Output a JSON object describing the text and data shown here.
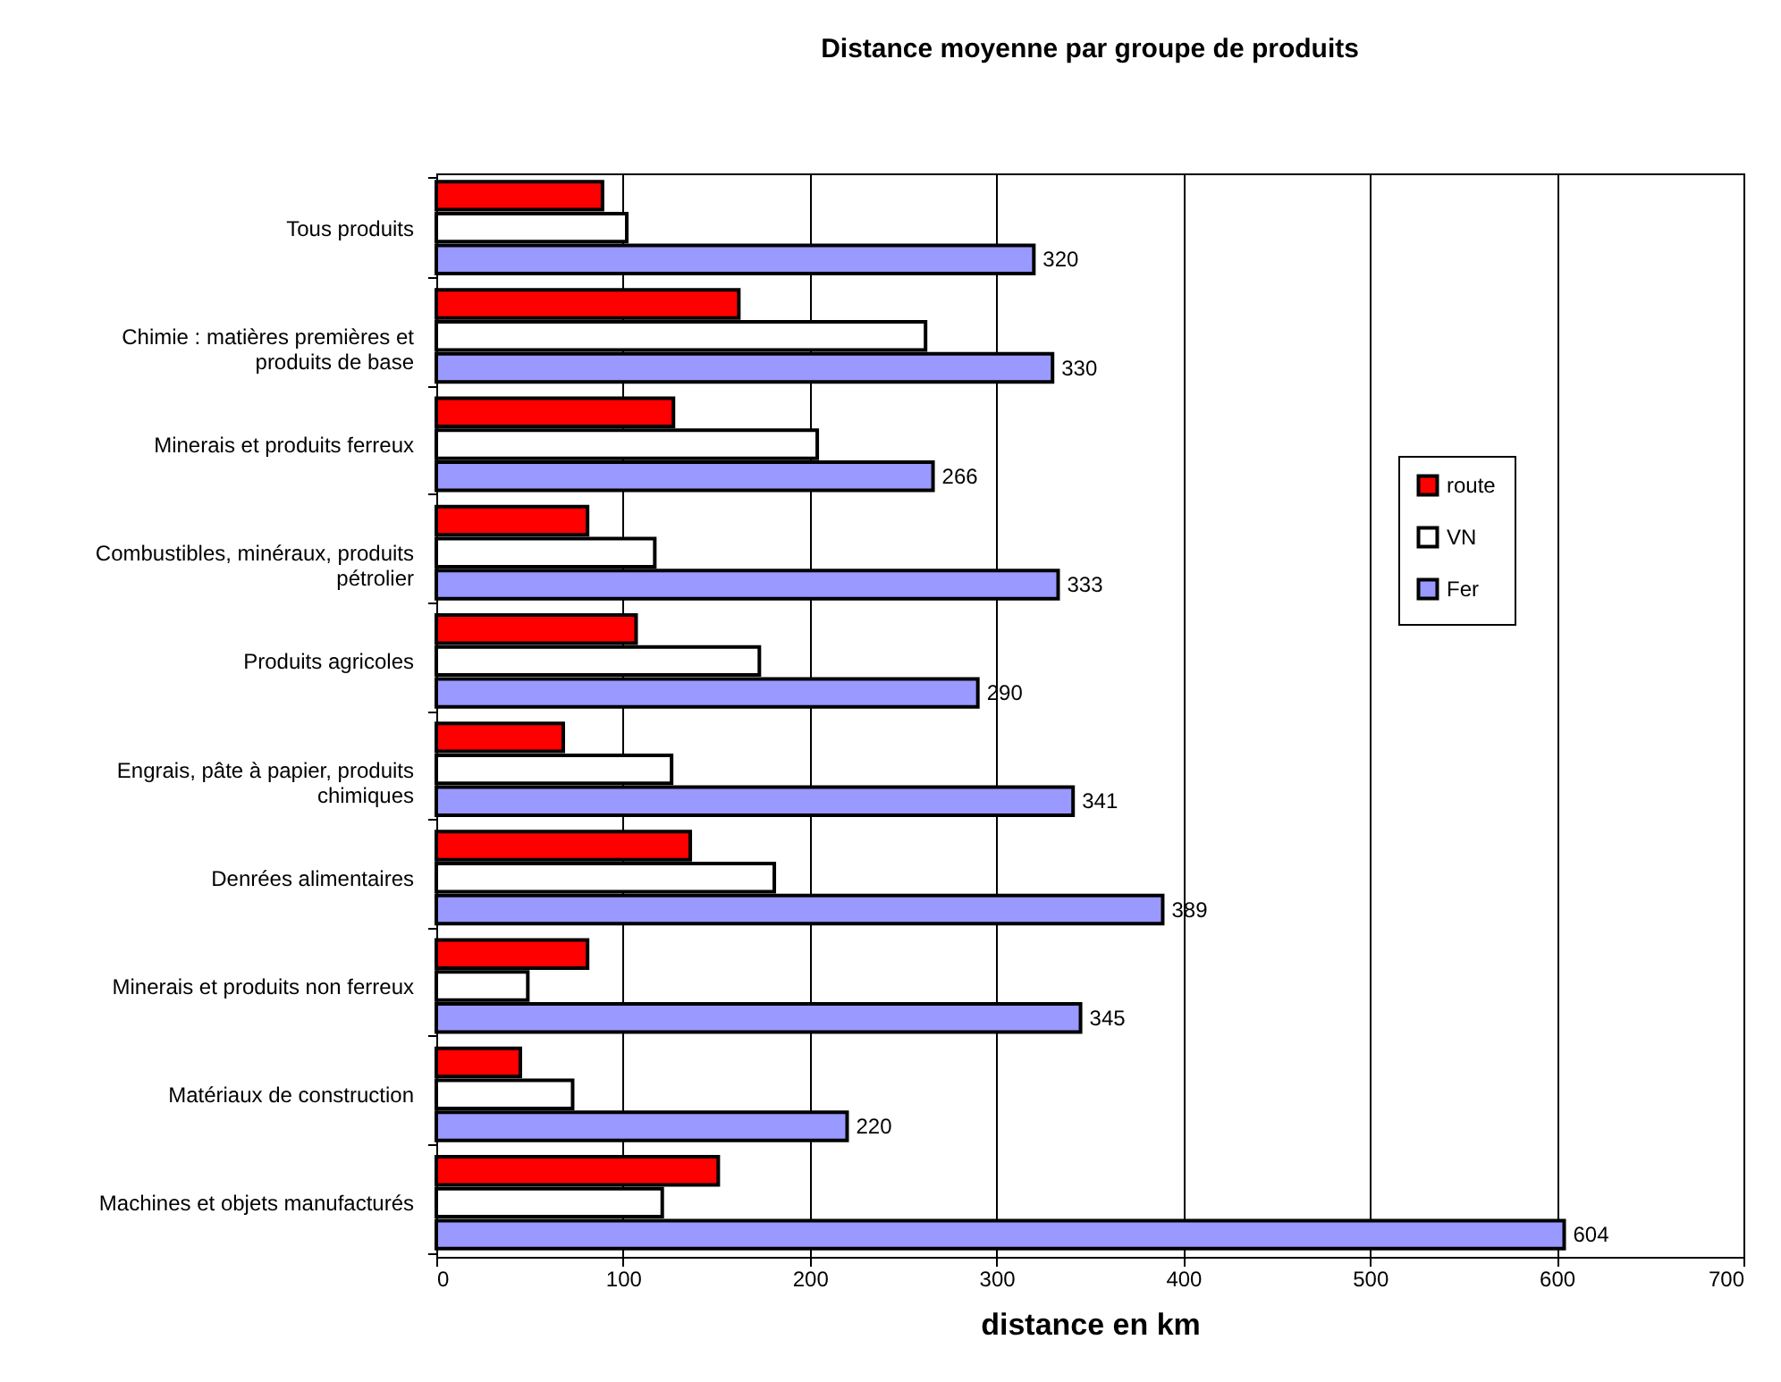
{
  "chart_data": {
    "type": "bar",
    "orientation": "horizontal",
    "title": "Distance moyenne par groupe de produits",
    "xlabel": "distance en km",
    "categories": [
      "Tous produits",
      "Chimie : matières premières et produits de base",
      "Minerais et produits ferreux",
      "Combustibles, minéraux, produits pétrolier",
      "Produits agricoles",
      "Engrais, pâte à papier, produits chimiques",
      "Denrées alimentaires",
      "Minerais et produits non ferreux",
      "Matériaux de construction",
      "Machines et objets manufacturés"
    ],
    "series": [
      {
        "name": "route",
        "color": "#ff0000",
        "values": [
          89,
          162,
          127,
          81,
          107,
          68,
          136,
          81,
          45,
          151
        ]
      },
      {
        "name": "VN",
        "color": "#ffffff",
        "values": [
          102,
          262,
          204,
          117,
          173,
          126,
          181,
          49,
          73,
          121
        ]
      },
      {
        "name": "Fer",
        "color": "#9999ff",
        "values": [
          320,
          330,
          266,
          333,
          290,
          341,
          389,
          345,
          220,
          604
        ],
        "value_labels": [
          "320",
          "330",
          "266",
          "333",
          "290",
          "341",
          "389",
          "345",
          "220",
          "604"
        ]
      }
    ],
    "xlim": [
      0,
      700
    ],
    "xticks": [
      0,
      100,
      200,
      300,
      400,
      500,
      600,
      700
    ],
    "grid": "x",
    "legend": "right"
  }
}
